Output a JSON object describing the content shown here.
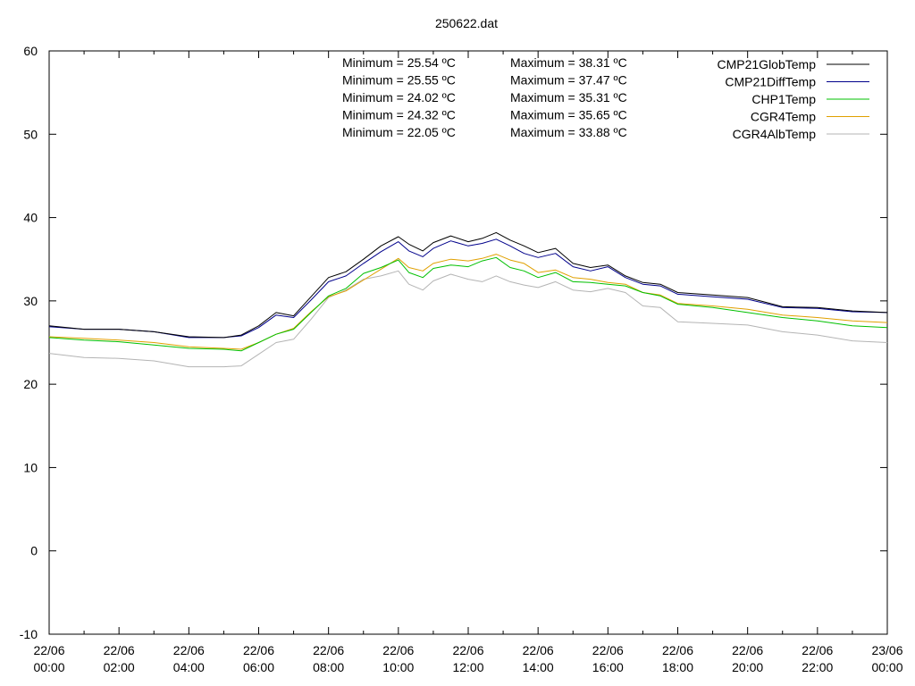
{
  "chart_data": {
    "type": "line",
    "title": "250622.dat",
    "xlabel": "",
    "ylabel": "",
    "ylim": [
      -10,
      60
    ],
    "yticks": [
      -10,
      0,
      10,
      20,
      30,
      40,
      50,
      60
    ],
    "xlim_hours": [
      0,
      24
    ],
    "xticks": [
      {
        "hour": 0,
        "date": "22/06",
        "time": "00:00"
      },
      {
        "hour": 2,
        "date": "22/06",
        "time": "02:00"
      },
      {
        "hour": 4,
        "date": "22/06",
        "time": "04:00"
      },
      {
        "hour": 6,
        "date": "22/06",
        "time": "06:00"
      },
      {
        "hour": 8,
        "date": "22/06",
        "time": "08:00"
      },
      {
        "hour": 10,
        "date": "22/06",
        "time": "10:00"
      },
      {
        "hour": 12,
        "date": "22/06",
        "time": "12:00"
      },
      {
        "hour": 14,
        "date": "22/06",
        "time": "14:00"
      },
      {
        "hour": 16,
        "date": "22/06",
        "time": "16:00"
      },
      {
        "hour": 18,
        "date": "22/06",
        "time": "18:00"
      },
      {
        "hour": 20,
        "date": "22/06",
        "time": "20:00"
      },
      {
        "hour": 22,
        "date": "22/06",
        "time": "22:00"
      },
      {
        "hour": 24,
        "date": "23/06",
        "time": "00:00"
      }
    ],
    "grid": false,
    "legend_position": "top-right",
    "x": [
      0,
      1,
      2,
      3,
      4,
      5,
      5.5,
      6,
      6.5,
      7,
      7.5,
      8,
      8.5,
      9,
      9.5,
      10,
      10.3,
      10.7,
      11,
      11.5,
      12,
      12.4,
      12.8,
      13.2,
      13.6,
      14,
      14.5,
      15,
      15.5,
      16,
      16.5,
      17,
      17.5,
      18,
      19,
      20,
      21,
      22,
      23,
      24
    ],
    "series": [
      {
        "name": "CMP21GlobTemp",
        "color": "#000000",
        "values": [
          27.0,
          26.6,
          26.6,
          26.3,
          25.7,
          25.6,
          25.9,
          27.0,
          28.6,
          28.2,
          30.5,
          32.8,
          33.5,
          35.0,
          36.6,
          37.7,
          36.8,
          36.0,
          37.0,
          37.8,
          37.1,
          37.5,
          38.2,
          37.3,
          36.6,
          35.8,
          36.3,
          34.5,
          34.0,
          34.3,
          33.0,
          32.2,
          32.0,
          31.0,
          30.7,
          30.4,
          29.3,
          29.2,
          28.8,
          28.6
        ]
      },
      {
        "name": "CMP21DiffTemp",
        "color": "#00008b",
        "values": [
          26.9,
          26.6,
          26.6,
          26.3,
          25.6,
          25.6,
          25.8,
          26.8,
          28.3,
          28.0,
          30.1,
          32.3,
          33.0,
          34.5,
          35.9,
          37.1,
          36.0,
          35.3,
          36.3,
          37.2,
          36.6,
          36.9,
          37.4,
          36.6,
          35.7,
          35.2,
          35.7,
          34.1,
          33.6,
          34.1,
          32.8,
          32.0,
          31.8,
          30.8,
          30.5,
          30.2,
          29.2,
          29.1,
          28.7,
          28.6
        ]
      },
      {
        "name": "CHP1Temp",
        "color": "#00c000",
        "values": [
          25.6,
          25.3,
          25.1,
          24.7,
          24.3,
          24.2,
          24.0,
          25.0,
          26.0,
          26.6,
          28.6,
          30.6,
          31.5,
          33.3,
          34.0,
          34.9,
          33.4,
          32.8,
          33.9,
          34.3,
          34.1,
          34.8,
          35.2,
          34.0,
          33.6,
          32.8,
          33.4,
          32.3,
          32.2,
          32.0,
          31.8,
          31.0,
          30.6,
          29.6,
          29.2,
          28.6,
          28.0,
          27.6,
          27.0,
          26.8
        ]
      },
      {
        "name": "CGR4Temp",
        "color": "#e0a000",
        "values": [
          25.7,
          25.5,
          25.3,
          25.0,
          24.5,
          24.3,
          24.2,
          25.0,
          26.0,
          26.7,
          28.7,
          30.5,
          31.2,
          32.5,
          33.8,
          35.1,
          34.0,
          33.6,
          34.5,
          35.0,
          34.8,
          35.1,
          35.6,
          34.9,
          34.5,
          33.4,
          33.7,
          32.8,
          32.6,
          32.2,
          32.0,
          31.0,
          30.7,
          29.7,
          29.4,
          29.0,
          28.3,
          28.0,
          27.6,
          27.4
        ]
      },
      {
        "name": "CGR4AlbTemp",
        "color": "#b4b4b4",
        "values": [
          23.7,
          23.2,
          23.1,
          22.8,
          22.1,
          22.1,
          22.2,
          23.6,
          25.0,
          25.4,
          27.8,
          30.4,
          31.3,
          32.6,
          33.0,
          33.6,
          32.0,
          31.3,
          32.4,
          33.2,
          32.6,
          32.3,
          33.0,
          32.3,
          31.9,
          31.6,
          32.3,
          31.3,
          31.1,
          31.5,
          31.0,
          29.4,
          29.2,
          27.5,
          27.3,
          27.1,
          26.3,
          25.9,
          25.2,
          25.0
        ]
      }
    ],
    "annotations": [
      {
        "min": "Minimum = 25.54 ºC",
        "max": "Maximum = 38.31 ºC"
      },
      {
        "min": "Minimum = 25.55 ºC",
        "max": "Maximum = 37.47 ºC"
      },
      {
        "min": "Minimum = 24.02 ºC",
        "max": "Maximum = 35.31 ºC"
      },
      {
        "min": "Minimum = 24.32 ºC",
        "max": "Maximum = 35.65 ºC"
      },
      {
        "min": "Minimum = 22.05 ºC",
        "max": "Maximum = 33.88 ºC"
      }
    ]
  }
}
